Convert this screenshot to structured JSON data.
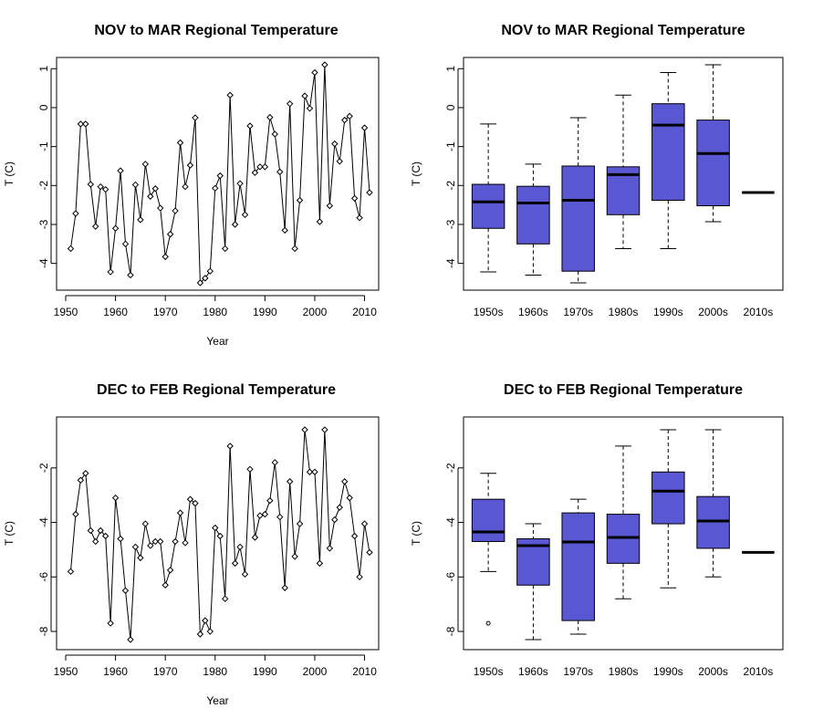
{
  "colors": {
    "box_fill": "#5a57d3",
    "line": "#000000",
    "background": "#ffffff"
  },
  "chart_data": [
    {
      "type": "line",
      "title": "NOV to MAR Regional Temperature",
      "xlabel": "Year",
      "ylabel": "T (C)",
      "xlim": [
        1950,
        2011
      ],
      "ylim": [
        -4.5,
        1.1
      ],
      "xticks": [
        "1950",
        "1960",
        "1970",
        "1980",
        "1990",
        "2000",
        "2010"
      ],
      "yticks": [
        "1",
        "0",
        "-1",
        "-2",
        "-3",
        "-4"
      ],
      "marker": "open-diamond",
      "x": [
        1951,
        1952,
        1953,
        1954,
        1955,
        1956,
        1957,
        1958,
        1959,
        1960,
        1961,
        1962,
        1963,
        1964,
        1965,
        1966,
        1967,
        1968,
        1969,
        1970,
        1971,
        1972,
        1973,
        1974,
        1975,
        1976,
        1977,
        1978,
        1979,
        1980,
        1981,
        1982,
        1983,
        1984,
        1985,
        1986,
        1987,
        1988,
        1989,
        1990,
        1991,
        1992,
        1993,
        1994,
        1995,
        1996,
        1997,
        1998,
        1999,
        2000,
        2001,
        2002,
        2003,
        2004,
        2005,
        2006,
        2007,
        2008,
        2009,
        2010,
        2011
      ],
      "y": [
        -3.62,
        -2.72,
        -0.42,
        -0.42,
        -1.97,
        -3.05,
        -2.03,
        -2.1,
        -4.22,
        -3.1,
        -1.62,
        -3.5,
        -4.3,
        -1.98,
        -2.88,
        -1.45,
        -2.28,
        -2.08,
        -2.58,
        -3.83,
        -3.25,
        -2.65,
        -0.9,
        -2.03,
        -1.48,
        -0.26,
        -4.5,
        -4.38,
        -4.2,
        -2.07,
        -1.75,
        -3.62,
        0.32,
        -3.0,
        -1.95,
        -2.75,
        -0.47,
        -1.67,
        -1.52,
        -1.52,
        -0.25,
        -0.68,
        -1.65,
        -3.15,
        0.1,
        -3.62,
        -2.38,
        0.3,
        -0.02,
        0.9,
        -2.93,
        1.1,
        -2.52,
        -0.93,
        -1.38,
        -0.32,
        -0.22,
        -2.33,
        -2.83,
        -0.52,
        -2.18
      ]
    },
    {
      "type": "box",
      "title": "NOV to MAR Regional Temperature",
      "ylabel": "T (C)",
      "ylim": [
        -4.5,
        1.1
      ],
      "yticks": [
        "1",
        "0",
        "-1",
        "-2",
        "-3",
        "-4"
      ],
      "categories": [
        "1950s",
        "1960s",
        "1970s",
        "1980s",
        "1990s",
        "2000s",
        "2010s"
      ],
      "boxes": [
        {
          "low": -4.22,
          "q1": -3.1,
          "median": -2.42,
          "q3": -1.97,
          "high": -0.42,
          "outliers": []
        },
        {
          "low": -4.3,
          "q1": -3.5,
          "median": -2.45,
          "q3": -2.02,
          "high": -1.45,
          "outliers": []
        },
        {
          "low": -4.5,
          "q1": -4.2,
          "median": -2.38,
          "q3": -1.5,
          "high": -0.26,
          "outliers": []
        },
        {
          "low": -3.62,
          "q1": -2.75,
          "median": -1.72,
          "q3": -1.52,
          "high": 0.32,
          "outliers": []
        },
        {
          "low": -3.62,
          "q1": -2.38,
          "median": -0.45,
          "q3": 0.1,
          "high": 0.9,
          "outliers": []
        },
        {
          "low": -2.93,
          "q1": -2.52,
          "median": -1.18,
          "q3": -0.32,
          "high": 1.1,
          "outliers": []
        },
        {
          "low": -2.18,
          "q1": -2.18,
          "median": -2.18,
          "q3": -2.18,
          "high": -2.18,
          "outliers": []
        }
      ]
    },
    {
      "type": "line",
      "title": "DEC to FEB Regional Temperature",
      "xlabel": "Year",
      "ylabel": "T (C)",
      "xlim": [
        1950,
        2011
      ],
      "ylim": [
        -8.4,
        -0.4
      ],
      "xticks": [
        "1950",
        "1960",
        "1970",
        "1980",
        "1990",
        "2000",
        "2010"
      ],
      "yticks": [
        "-2",
        "-4",
        "-6",
        "-8"
      ],
      "marker": "open-diamond",
      "x": [
        1951,
        1952,
        1953,
        1954,
        1955,
        1956,
        1957,
        1958,
        1959,
        1960,
        1961,
        1962,
        1963,
        1964,
        1965,
        1966,
        1967,
        1968,
        1969,
        1970,
        1971,
        1972,
        1973,
        1974,
        1975,
        1976,
        1977,
        1978,
        1979,
        1980,
        1981,
        1982,
        1983,
        1984,
        1985,
        1986,
        1987,
        1988,
        1989,
        1990,
        1991,
        1992,
        1993,
        1994,
        1995,
        1996,
        1997,
        1998,
        1999,
        2000,
        2001,
        2002,
        2003,
        2004,
        2005,
        2006,
        2007,
        2008,
        2009,
        2010,
        2011
      ],
      "y": [
        -5.8,
        -3.7,
        -2.45,
        -2.2,
        -4.3,
        -4.7,
        -4.3,
        -4.5,
        -7.7,
        -3.1,
        -4.6,
        -6.5,
        -8.3,
        -4.9,
        -5.3,
        -4.05,
        -4.85,
        -4.7,
        -4.7,
        -6.3,
        -5.75,
        -4.7,
        -3.65,
        -4.75,
        -3.15,
        -3.3,
        -8.1,
        -7.6,
        -8.0,
        -4.2,
        -4.5,
        -6.8,
        -1.2,
        -5.5,
        -4.9,
        -5.9,
        -2.05,
        -4.55,
        -3.75,
        -3.7,
        -3.2,
        -1.8,
        -3.8,
        -6.4,
        -2.5,
        -5.25,
        -4.05,
        -0.6,
        -2.15,
        -2.15,
        -5.5,
        -0.6,
        -4.95,
        -3.9,
        -3.45,
        -2.5,
        -3.1,
        -4.5,
        -6.0,
        -4.05,
        -5.1
      ]
    },
    {
      "type": "box",
      "title": "DEC to FEB Regional Temperature",
      "ylabel": "T (C)",
      "ylim": [
        -8.4,
        -0.4
      ],
      "yticks": [
        "-2",
        "-4",
        "-6",
        "-8"
      ],
      "categories": [
        "1950s",
        "1960s",
        "1970s",
        "1980s",
        "1990s",
        "2000s",
        "2010s"
      ],
      "boxes": [
        {
          "low": -5.8,
          "q1": -4.7,
          "median": -4.35,
          "q3": -3.15,
          "high": -2.2,
          "outliers": [
            -7.7
          ]
        },
        {
          "low": -8.3,
          "q1": -6.3,
          "median": -4.85,
          "q3": -4.6,
          "high": -4.05,
          "outliers": []
        },
        {
          "low": -8.1,
          "q1": -7.6,
          "median": -4.72,
          "q3": -3.65,
          "high": -3.15,
          "outliers": []
        },
        {
          "low": -6.8,
          "q1": -5.5,
          "median": -4.55,
          "q3": -3.7,
          "high": -1.2,
          "outliers": []
        },
        {
          "low": -6.4,
          "q1": -4.05,
          "median": -2.85,
          "q3": -2.15,
          "high": -0.6,
          "outliers": []
        },
        {
          "low": -6.0,
          "q1": -4.95,
          "median": -3.95,
          "q3": -3.05,
          "high": -0.6,
          "outliers": []
        },
        {
          "low": -5.1,
          "q1": -5.1,
          "median": -5.1,
          "q3": -5.1,
          "high": -5.1,
          "outliers": []
        }
      ]
    }
  ]
}
